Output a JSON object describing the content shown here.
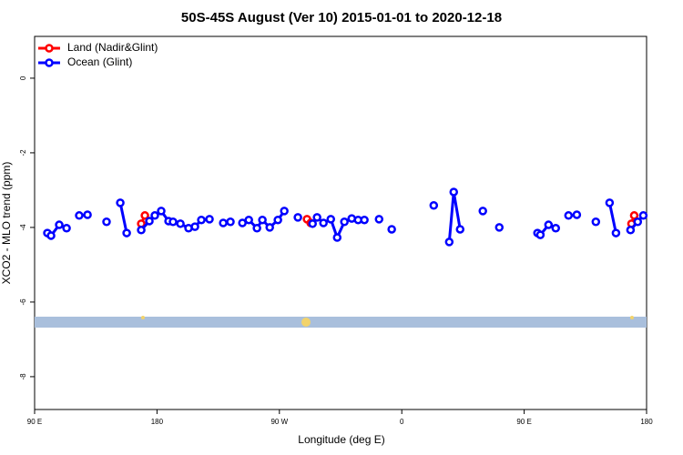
{
  "chart_data": {
    "type": "line",
    "title": "50S-45S August (Ver 10)   2015-01-01 to 2020-12-18",
    "x_label": "Longitude (deg E)",
    "y_label": "XCO2 - MLO trend (ppm)",
    "xlim": [
      90,
      540
    ],
    "ylim": [
      -8.88,
      1.12
    ],
    "xticks": [
      {
        "value": 90,
        "label": "90 E"
      },
      {
        "value": 180,
        "label": "180"
      },
      {
        "value": 270,
        "label": "90 W"
      },
      {
        "value": 360,
        "label": "0"
      },
      {
        "value": 450,
        "label": "90 E"
      },
      {
        "value": 540,
        "label": "180"
      }
    ],
    "yticks": [
      0,
      -2,
      -4,
      -6,
      -8
    ],
    "legend": "top-left",
    "series": [
      {
        "name": "Land (Nadir&Glint)",
        "color": "#ff0000",
        "x": [
          168.4,
          171.1,
          290.3,
          293.0,
          528.9,
          530.9
        ],
        "values": [
          -3.9,
          -3.68,
          -3.78,
          -3.88,
          -3.9,
          -3.68
        ]
      },
      {
        "name": "Ocean (Glint)",
        "color": "#0000ff",
        "x": [
          99.4,
          102.1,
          108.1,
          113.5,
          122.8,
          128.9,
          142.9,
          153.0,
          157.7,
          168.4,
          174.4,
          178.4,
          183.1,
          188.5,
          191.8,
          197.2,
          203.2,
          207.9,
          212.6,
          218.6,
          228.7,
          234.0,
          242.8,
          247.5,
          253.5,
          257.5,
          262.9,
          268.9,
          273.6,
          283.6,
          294.4,
          297.7,
          302.4,
          307.8,
          312.5,
          317.8,
          323.2,
          327.9,
          332.5,
          343.3,
          352.6,
          383.5,
          394.9,
          398.2,
          402.9,
          419.6,
          431.7,
          459.8,
          461.9,
          467.9,
          473.2,
          482.6,
          488.7,
          502.7,
          512.8,
          517.5,
          528.2,
          533.5,
          537.6
        ],
        "values": [
          -4.15,
          -4.22,
          -3.93,
          -4.02,
          -3.68,
          -3.66,
          -3.85,
          -3.34,
          -4.15,
          -4.07,
          -3.83,
          -3.68,
          -3.56,
          -3.83,
          -3.85,
          -3.9,
          -4.02,
          -3.98,
          -3.8,
          -3.78,
          -3.88,
          -3.85,
          -3.88,
          -3.8,
          -4.02,
          -3.8,
          -4.0,
          -3.8,
          -3.56,
          -3.73,
          -3.9,
          -3.73,
          -3.88,
          -3.78,
          -4.27,
          -3.85,
          -3.76,
          -3.8,
          -3.8,
          -3.78,
          -4.05,
          -3.41,
          -4.39,
          -3.05,
          -4.05,
          -3.56,
          -4.0,
          -4.15,
          -4.2,
          -3.93,
          -4.02,
          -3.68,
          -3.66,
          -3.85,
          -3.34,
          -4.15,
          -4.07,
          -3.85,
          -3.68
        ]
      }
    ]
  }
}
